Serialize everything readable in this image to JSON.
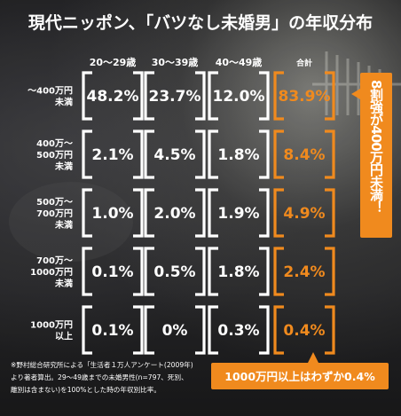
{
  "title": "現代ニッポン、「バツなし未婚男」の年収分布",
  "chart_data": {
    "type": "table",
    "columns": [
      "20〜29歳",
      "30〜39歳",
      "40〜49歳",
      "合計"
    ],
    "rows": [
      {
        "label": [
          "〜400万円",
          "未満"
        ],
        "values": [
          "48.2%",
          "23.7%",
          "12.0%",
          "83.9%"
        ]
      },
      {
        "label": [
          "400万〜",
          "500万円",
          "未満"
        ],
        "values": [
          "2.1%",
          "4.5%",
          "1.8%",
          "8.4%"
        ]
      },
      {
        "label": [
          "500万〜",
          "700万円",
          "未満"
        ],
        "values": [
          "1.0%",
          "2.0%",
          "1.9%",
          "4.9%"
        ]
      },
      {
        "label": [
          "700万〜",
          "1000万円",
          "未満"
        ],
        "values": [
          "0.1%",
          "0.5%",
          "1.8%",
          "2.4%"
        ]
      },
      {
        "label": [
          "1000万円",
          "以上"
        ],
        "values": [
          "0.1%",
          "0%",
          "0.3%",
          "0.4%"
        ]
      }
    ]
  },
  "callout_vertical": "8割強が400万円未満！",
  "callout_bottom": "1000万円以上はわずか0.4%",
  "note": [
    "※野村総合研究所による「生活者１万人アンケート(2009年)",
    "より著者算出。29〜49歳までの未婚男性(n=797、死別、",
    "離別は含まない)を100%とした時の年収別比率。"
  ],
  "colors": {
    "accent": "#f08a1e",
    "frame": "#ffffff",
    "text": "#ffffff"
  }
}
